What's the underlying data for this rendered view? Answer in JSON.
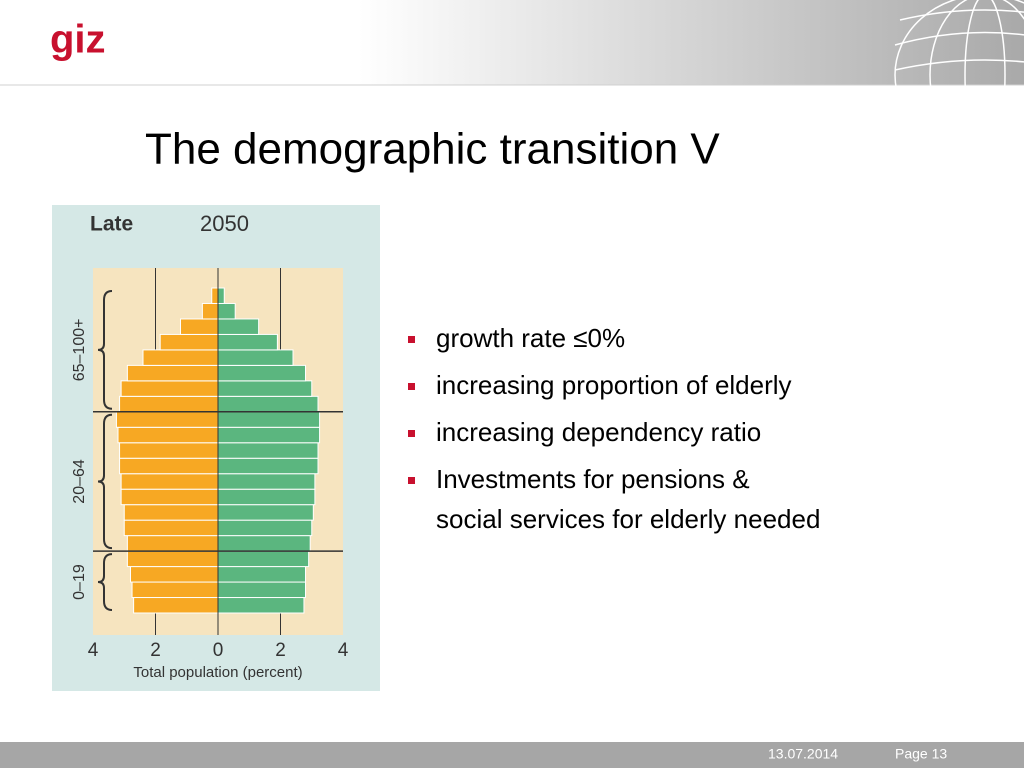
{
  "logo": "giz",
  "title": "The demographic transition V",
  "bullets": [
    "growth rate ≤0%",
    "increasing proportion of elderly",
    "increasing dependency ratio",
    "Investments for pensions &\nsocial services for elderly needed"
  ],
  "footer": {
    "date": "13.07.2014",
    "page": "Page 13"
  },
  "chart_data": {
    "type": "pyramid",
    "title": "Late",
    "subtitle": "2050",
    "x_label": "Total population (percent)",
    "age_groups": [
      "0–19",
      "20–64",
      "65–100+"
    ],
    "categories": [
      null,
      null,
      null,
      null,
      null,
      null,
      null,
      null,
      null,
      null,
      null,
      null,
      null,
      null,
      null,
      null,
      null,
      null,
      null,
      null,
      null
    ],
    "series": [
      {
        "color": "#f7a823",
        "values": [
          2.7,
          2.75,
          2.8,
          2.9,
          2.9,
          3.0,
          3.0,
          3.1,
          3.1,
          3.15,
          3.15,
          3.2,
          3.25,
          3.15,
          3.1,
          2.9,
          2.4,
          1.85,
          1.2,
          0.5,
          0.2
        ]
      },
      {
        "color": "#5bb67f",
        "values": [
          2.75,
          2.8,
          2.8,
          2.9,
          2.95,
          3.0,
          3.05,
          3.1,
          3.1,
          3.2,
          3.2,
          3.25,
          3.25,
          3.2,
          3.0,
          2.8,
          2.4,
          1.9,
          1.3,
          0.55,
          0.2
        ]
      }
    ],
    "xlim": [
      -4,
      4
    ],
    "xticks": [
      {
        "value": -4,
        "label": "4"
      },
      {
        "value": -2,
        "label": "2"
      },
      0,
      2,
      4
    ],
    "grid": true
  }
}
